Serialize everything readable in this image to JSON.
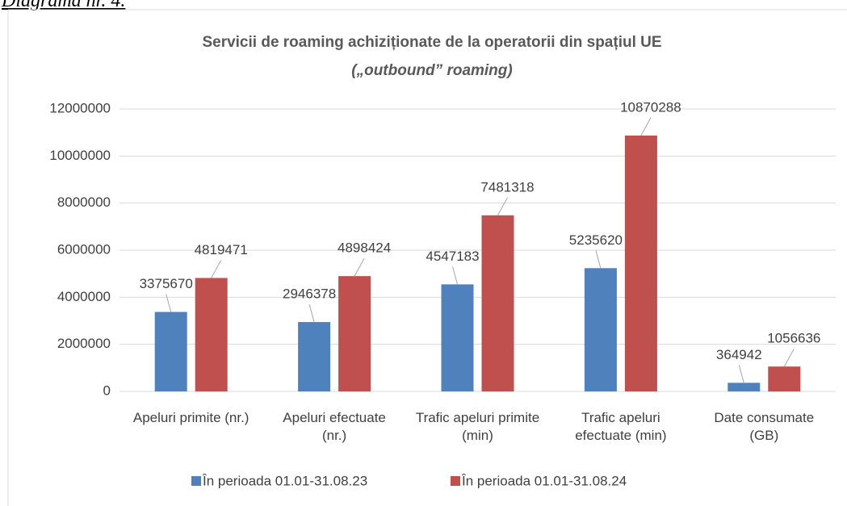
{
  "caption": "Diagrama nr. 4.",
  "chart_data": {
    "type": "bar",
    "title": "Servicii de roaming achiziționate de la operatorii din spațiul UE",
    "subtitle": "(„outbound” roaming)",
    "categories": [
      "Apeluri primite (nr.)",
      "Apeluri efectuate (nr.)",
      "Trafic apeluri primite (min)",
      "Trafic apeluri efectuate (min)",
      "Date consumate (GB)"
    ],
    "series": [
      {
        "name": "În perioada 01.01-31.08.23",
        "color": "#4f81bd",
        "values": [
          3375670,
          2946378,
          4547183,
          5235620,
          364942
        ]
      },
      {
        "name": "În perioada 01.01-31.08.24",
        "color": "#c0504d",
        "values": [
          4819471,
          4898424,
          7481318,
          10870288,
          1056636
        ]
      }
    ],
    "ylim": [
      0,
      12000000
    ],
    "yticks": [
      0,
      2000000,
      4000000,
      6000000,
      8000000,
      10000000,
      12000000
    ],
    "grid": true,
    "legend": "bottom"
  }
}
